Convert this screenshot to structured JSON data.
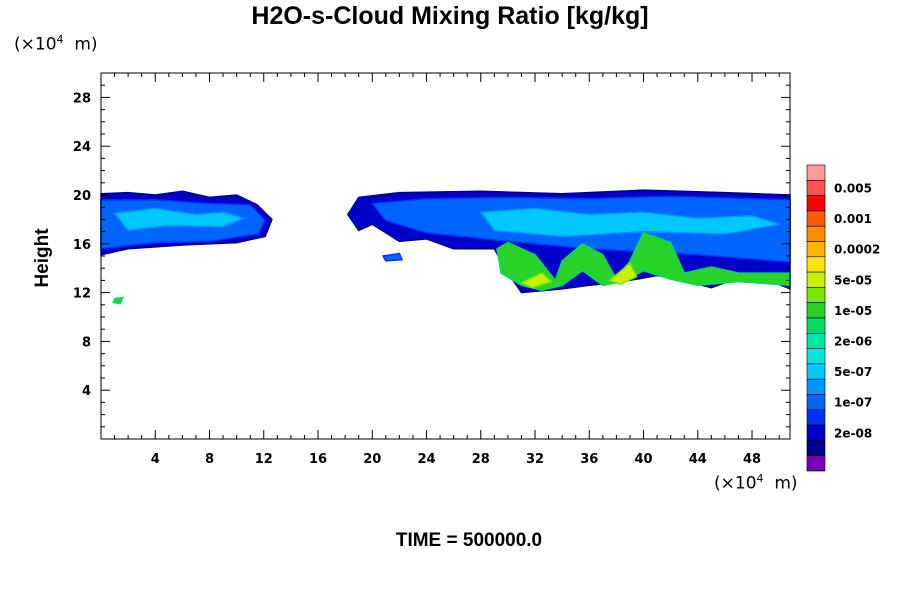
{
  "chart_data": {
    "type": "heatmap",
    "title": "H2O-s-Cloud Mixing Ratio [kg/kg]",
    "xlabel": "",
    "ylabel": "Height",
    "x_unit_label": "m",
    "y_unit_label": "m",
    "scale_factor_exponent": "4",
    "xlim": [
      0,
      50.8
    ],
    "ylim": [
      0,
      30
    ],
    "x_ticks": [
      4,
      8,
      12,
      16,
      20,
      24,
      28,
      32,
      36,
      40,
      44,
      48
    ],
    "y_ticks": [
      4,
      8,
      12,
      16,
      20,
      24,
      28
    ],
    "grid": false,
    "colorbar": {
      "levels": [
        {
          "label": "",
          "color": "#ff9a9a"
        },
        {
          "label": "0.005",
          "color": "#ff5050"
        },
        {
          "label": "",
          "color": "#ff0000"
        },
        {
          "label": "0.001",
          "color": "#ff5a00"
        },
        {
          "label": "",
          "color": "#ff8c00"
        },
        {
          "label": "0.0002",
          "color": "#ffb400"
        },
        {
          "label": "",
          "color": "#ffe600"
        },
        {
          "label": "5e-05",
          "color": "#c8f000"
        },
        {
          "label": "",
          "color": "#78e600"
        },
        {
          "label": "1e-05",
          "color": "#28d228"
        },
        {
          "label": "",
          "color": "#00dc64"
        },
        {
          "label": "2e-06",
          "color": "#00e6aa"
        },
        {
          "label": "",
          "color": "#00e6e6"
        },
        {
          "label": "5e-07",
          "color": "#00c8ff"
        },
        {
          "label": "",
          "color": "#0096ff"
        },
        {
          "label": "1e-07",
          "color": "#0064ff"
        },
        {
          "label": "",
          "color": "#0032ff"
        },
        {
          "label": "2e-08",
          "color": "#0000c8"
        },
        {
          "label": "",
          "color": "#00008c"
        },
        {
          "label": "",
          "color": "#7800b4"
        }
      ]
    },
    "regions": [
      {
        "level": 17,
        "points": [
          [
            0,
            20.1
          ],
          [
            2,
            20.2
          ],
          [
            4,
            20.0
          ],
          [
            6,
            20.3
          ],
          [
            8,
            19.8
          ],
          [
            10,
            20.0
          ],
          [
            11.5,
            19.2
          ],
          [
            12.6,
            18.0
          ],
          [
            12.1,
            16.6
          ],
          [
            10,
            16.1
          ],
          [
            6,
            15.9
          ],
          [
            2,
            15.6
          ],
          [
            0,
            15.1
          ]
        ]
      },
      {
        "level": 15,
        "points": [
          [
            0,
            19.6
          ],
          [
            4,
            19.6
          ],
          [
            8,
            19.3
          ],
          [
            11,
            19.2
          ],
          [
            12.1,
            17.9
          ],
          [
            11.6,
            16.8
          ],
          [
            8,
            16.2
          ],
          [
            4,
            16.1
          ],
          [
            0,
            15.6
          ]
        ]
      },
      {
        "level": 13,
        "points": [
          [
            1,
            18.5
          ],
          [
            4,
            18.9
          ],
          [
            7,
            18.4
          ],
          [
            9,
            18.6
          ],
          [
            10.5,
            18.1
          ],
          [
            9,
            17.4
          ],
          [
            5,
            17.5
          ],
          [
            2,
            17.1
          ]
        ]
      },
      {
        "level": 17,
        "points": [
          [
            18.2,
            18.4
          ],
          [
            19,
            19.8
          ],
          [
            22,
            20.2
          ],
          [
            28,
            20.3
          ],
          [
            34,
            20.1
          ],
          [
            40,
            20.4
          ],
          [
            46,
            20.2
          ],
          [
            50.8,
            20.0
          ],
          [
            50.8,
            12.3
          ],
          [
            48,
            13.6
          ],
          [
            45,
            12.4
          ],
          [
            43,
            13.0
          ],
          [
            41,
            13.4
          ],
          [
            38,
            12.8
          ],
          [
            36,
            12.6
          ],
          [
            34,
            12.3
          ],
          [
            31,
            12.0
          ],
          [
            30,
            13.6
          ],
          [
            29,
            15.6
          ],
          [
            26,
            15.6
          ],
          [
            24,
            16.4
          ],
          [
            22,
            16.2
          ],
          [
            20,
            17.6
          ],
          [
            19,
            17.1
          ]
        ]
      },
      {
        "level": 15,
        "points": [
          [
            20,
            19.3
          ],
          [
            24,
            19.7
          ],
          [
            30,
            19.8
          ],
          [
            36,
            19.7
          ],
          [
            42,
            19.9
          ],
          [
            48,
            19.7
          ],
          [
            50.8,
            19.6
          ],
          [
            50.8,
            14.5
          ],
          [
            44,
            15.1
          ],
          [
            36,
            15.6
          ],
          [
            30,
            16.2
          ],
          [
            24,
            16.9
          ],
          [
            21,
            17.9
          ]
        ]
      },
      {
        "level": 13,
        "points": [
          [
            28,
            18.6
          ],
          [
            32,
            18.9
          ],
          [
            36,
            18.4
          ],
          [
            40,
            18.6
          ],
          [
            44,
            18.1
          ],
          [
            48,
            18.3
          ],
          [
            50,
            17.6
          ],
          [
            46,
            16.8
          ],
          [
            40,
            17.0
          ],
          [
            34,
            16.6
          ],
          [
            29,
            17.1
          ]
        ]
      },
      {
        "level": 9,
        "points": [
          [
            30,
            16.1
          ],
          [
            32,
            15.1
          ],
          [
            33.5,
            13.0
          ],
          [
            34,
            14.6
          ],
          [
            35.5,
            16.0
          ],
          [
            37,
            15.1
          ],
          [
            38,
            13.1
          ],
          [
            39,
            14.6
          ],
          [
            40,
            16.9
          ],
          [
            42,
            16.1
          ],
          [
            43,
            13.6
          ],
          [
            45,
            14.1
          ],
          [
            47,
            13.6
          ],
          [
            50.8,
            13.6
          ],
          [
            50.8,
            12.6
          ],
          [
            47,
            12.9
          ],
          [
            44,
            12.6
          ],
          [
            42,
            13.1
          ],
          [
            40,
            13.8
          ],
          [
            38.5,
            12.9
          ],
          [
            37,
            12.6
          ],
          [
            35.5,
            13.8
          ],
          [
            34,
            12.6
          ],
          [
            32.5,
            12.2
          ],
          [
            31,
            12.6
          ],
          [
            29.5,
            13.6
          ],
          [
            29.2,
            15.6
          ]
        ]
      },
      {
        "level": 7,
        "points": [
          [
            31,
            12.8
          ],
          [
            32.5,
            13.6
          ],
          [
            33.2,
            12.9
          ],
          [
            31.8,
            12.4
          ]
        ]
      },
      {
        "level": 7,
        "points": [
          [
            37.5,
            13.0
          ],
          [
            39,
            14.4
          ],
          [
            39.5,
            13.3
          ],
          [
            38.3,
            12.7
          ]
        ]
      },
      {
        "level": 15,
        "points": [
          [
            20.8,
            15.0
          ],
          [
            22,
            15.2
          ],
          [
            22.2,
            14.7
          ],
          [
            21,
            14.6
          ]
        ]
      },
      {
        "level": 9,
        "points": [
          [
            1,
            11.5
          ],
          [
            1.6,
            11.6
          ],
          [
            1.4,
            11.1
          ],
          [
            0.9,
            11.2
          ]
        ]
      }
    ]
  },
  "footer": {
    "time_text": "TIME = 500000.0"
  }
}
